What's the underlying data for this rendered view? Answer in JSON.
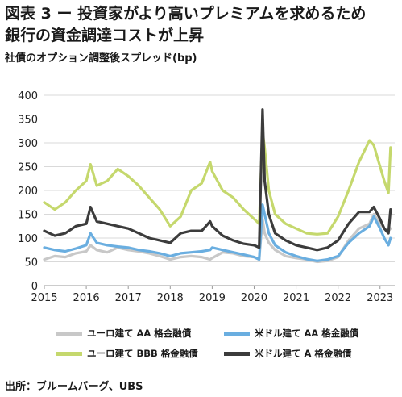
{
  "header": {
    "title_line1": "図表 3 ー 投資家がより高いプレミアムを求めるため",
    "title_line2": "銀行の資金調達コストが上昇",
    "subtitle": "社債のオプション調整後スプレッド(bp)"
  },
  "source": "出所：ブルームバーグ、UBS",
  "chart_data": {
    "type": "line",
    "title": "",
    "xlabel": "",
    "ylabel": "社債のオプション調整後スプレッド(bp)",
    "xlim": [
      2015.0,
      2023.35
    ],
    "ylim": [
      0,
      400
    ],
    "y_ticks": [
      0,
      50,
      100,
      150,
      200,
      250,
      300,
      350,
      400
    ],
    "x_ticks": [
      2015,
      2016,
      2017,
      2018,
      2019,
      2020,
      2021,
      2022,
      2023
    ],
    "x_tick_labels": [
      "2015",
      "2016",
      "2017",
      "2018",
      "2019",
      "2020",
      "2021",
      "2022",
      "2023"
    ],
    "grid": "horizontal",
    "legend_position": "bottom",
    "x": [
      2015.0,
      2015.25,
      2015.5,
      2015.75,
      2016.0,
      2016.1,
      2016.25,
      2016.5,
      2016.75,
      2017.0,
      2017.25,
      2017.5,
      2017.75,
      2018.0,
      2018.25,
      2018.5,
      2018.75,
      2018.95,
      2019.0,
      2019.25,
      2019.5,
      2019.75,
      2020.0,
      2020.12,
      2020.2,
      2020.25,
      2020.35,
      2020.5,
      2020.75,
      2021.0,
      2021.25,
      2021.5,
      2021.75,
      2022.0,
      2022.25,
      2022.5,
      2022.75,
      2022.85,
      2023.0,
      2023.1,
      2023.2,
      2023.25
    ],
    "series": [
      {
        "name": "ユーロ建て AA 格金融債",
        "color": "#c8c8c8",
        "values": [
          55,
          62,
          60,
          68,
          72,
          85,
          75,
          70,
          80,
          75,
          72,
          68,
          62,
          55,
          60,
          62,
          60,
          55,
          58,
          70,
          68,
          62,
          60,
          55,
          140,
          110,
          90,
          75,
          62,
          58,
          55,
          50,
          52,
          60,
          95,
          120,
          130,
          150,
          130,
          120,
          115,
          120
        ]
      },
      {
        "name": "米ドル建て AA 格金融債",
        "color": "#6aaee0",
        "values": [
          80,
          75,
          72,
          78,
          85,
          110,
          90,
          85,
          82,
          80,
          75,
          72,
          68,
          62,
          68,
          70,
          72,
          75,
          80,
          75,
          70,
          65,
          60,
          55,
          170,
          150,
          110,
          85,
          70,
          62,
          56,
          52,
          55,
          62,
          90,
          110,
          125,
          145,
          120,
          100,
          85,
          100
        ]
      },
      {
        "name": "ユーロ建て BBB 格金融債",
        "color": "#c5d86d",
        "values": [
          175,
          160,
          175,
          200,
          220,
          255,
          210,
          220,
          245,
          230,
          210,
          185,
          160,
          125,
          145,
          200,
          215,
          260,
          240,
          200,
          185,
          160,
          140,
          130,
          325,
          290,
          200,
          150,
          130,
          120,
          110,
          108,
          110,
          145,
          200,
          260,
          305,
          295,
          250,
          220,
          195,
          290
        ]
      },
      {
        "name": "米ドル建て A 格金融債",
        "color": "#3c3c3c",
        "values": [
          115,
          105,
          110,
          125,
          130,
          165,
          135,
          130,
          125,
          120,
          110,
          100,
          95,
          90,
          110,
          115,
          115,
          135,
          125,
          105,
          95,
          88,
          85,
          80,
          370,
          220,
          150,
          110,
          95,
          85,
          80,
          75,
          80,
          95,
          130,
          155,
          155,
          165,
          140,
          120,
          110,
          160
        ]
      }
    ]
  }
}
